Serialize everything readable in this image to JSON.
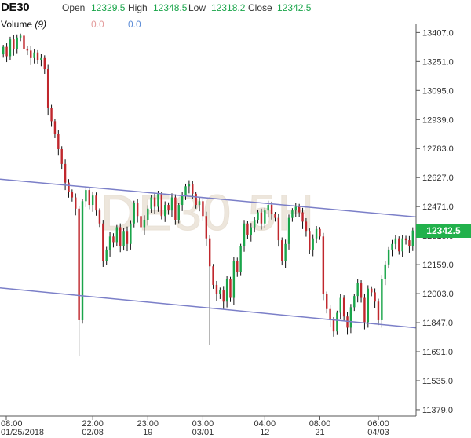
{
  "header": {
    "symbol": "DE30",
    "open_label": "Open",
    "open_value": "12329.5",
    "high_label": "High",
    "high_value": "12348.5",
    "low_label": "Low",
    "low_value": "12318.2",
    "close_label": "Close",
    "close_value": "12342.5"
  },
  "volume": {
    "name": "Volume",
    "period": "(9)",
    "value_a": "0.0",
    "value_b": "0.0"
  },
  "watermark": "DE30 5H",
  "last_price_label": "12342.5",
  "colors": {
    "up": "#1aa54a",
    "down": "#c0272d",
    "channel": "#7b7fc8",
    "price_box": "#22b14c"
  },
  "chart_data": {
    "type": "candlestick",
    "y_axis": {
      "ticks": [
        "13407.0",
        "13251.0",
        "13095.0",
        "12939.0",
        "12783.0",
        "12627.0",
        "12471.0",
        "12315.0",
        "12159.0",
        "12003.0",
        "11847.0",
        "11691.0",
        "11535.0",
        "11379.0"
      ],
      "ylim": [
        11345,
        13455
      ],
      "position": "right"
    },
    "x_axis": {
      "ticks": [
        {
          "time": "08:00",
          "date": "01/25/2018",
          "index": 0
        },
        {
          "time": "22:00",
          "date": "02/08",
          "index": 26
        },
        {
          "time": "23:00",
          "date": "19",
          "index": 42
        },
        {
          "time": "03:00",
          "date": "03/01",
          "index": 58
        },
        {
          "time": "04:00",
          "date": "12",
          "index": 76
        },
        {
          "time": "08:00",
          "date": "21",
          "index": 92
        },
        {
          "time": "06:00",
          "date": "04/03",
          "index": 109
        }
      ]
    },
    "channel": {
      "upper": [
        {
          "index": 0,
          "price": 12617
        },
        {
          "index": 120,
          "price": 12415
        }
      ],
      "lower": [
        {
          "index": 0,
          "price": 12032
        },
        {
          "index": 120,
          "price": 11819
        }
      ]
    },
    "closes": [
      13330,
      13280,
      13370,
      13320,
      13380,
      13390,
      13320,
      13310,
      13270,
      13300,
      13260,
      13270,
      13210,
      13000,
      12930,
      12860,
      12780,
      12700,
      12600,
      12550,
      12520,
      12460,
      11860,
      12500,
      12560,
      12480,
      12530,
      12450,
      12380,
      12180,
      12240,
      12310,
      12280,
      12360,
      12260,
      12340,
      12270,
      12380,
      12490,
      12420,
      12360,
      12400,
      12460,
      12520,
      12470,
      12540,
      12420,
      12480,
      12450,
      12520,
      12400,
      12480,
      12530,
      12580,
      12590,
      12540,
      12480,
      12500,
      12420,
      12300,
      12150,
      12050,
      12000,
      12020,
      11960,
      12080,
      11980,
      12180,
      12120,
      12260,
      12380,
      12320,
      12360,
      12400,
      12440,
      12380,
      12450,
      12480,
      12430,
      12410,
      12290,
      12180,
      12270,
      12410,
      12450,
      12470,
      12440,
      12390,
      12340,
      12240,
      12300,
      12350,
      12310,
      12000,
      11920,
      11860,
      11800,
      11900,
      11980,
      11880,
      11820,
      11930,
      11990,
      12060,
      11980,
      11850,
      12030,
      12010,
      11960,
      11860,
      12080,
      12160,
      12240,
      12270,
      12300,
      12230,
      12300,
      12290,
      12260,
      12342.5
    ]
  }
}
